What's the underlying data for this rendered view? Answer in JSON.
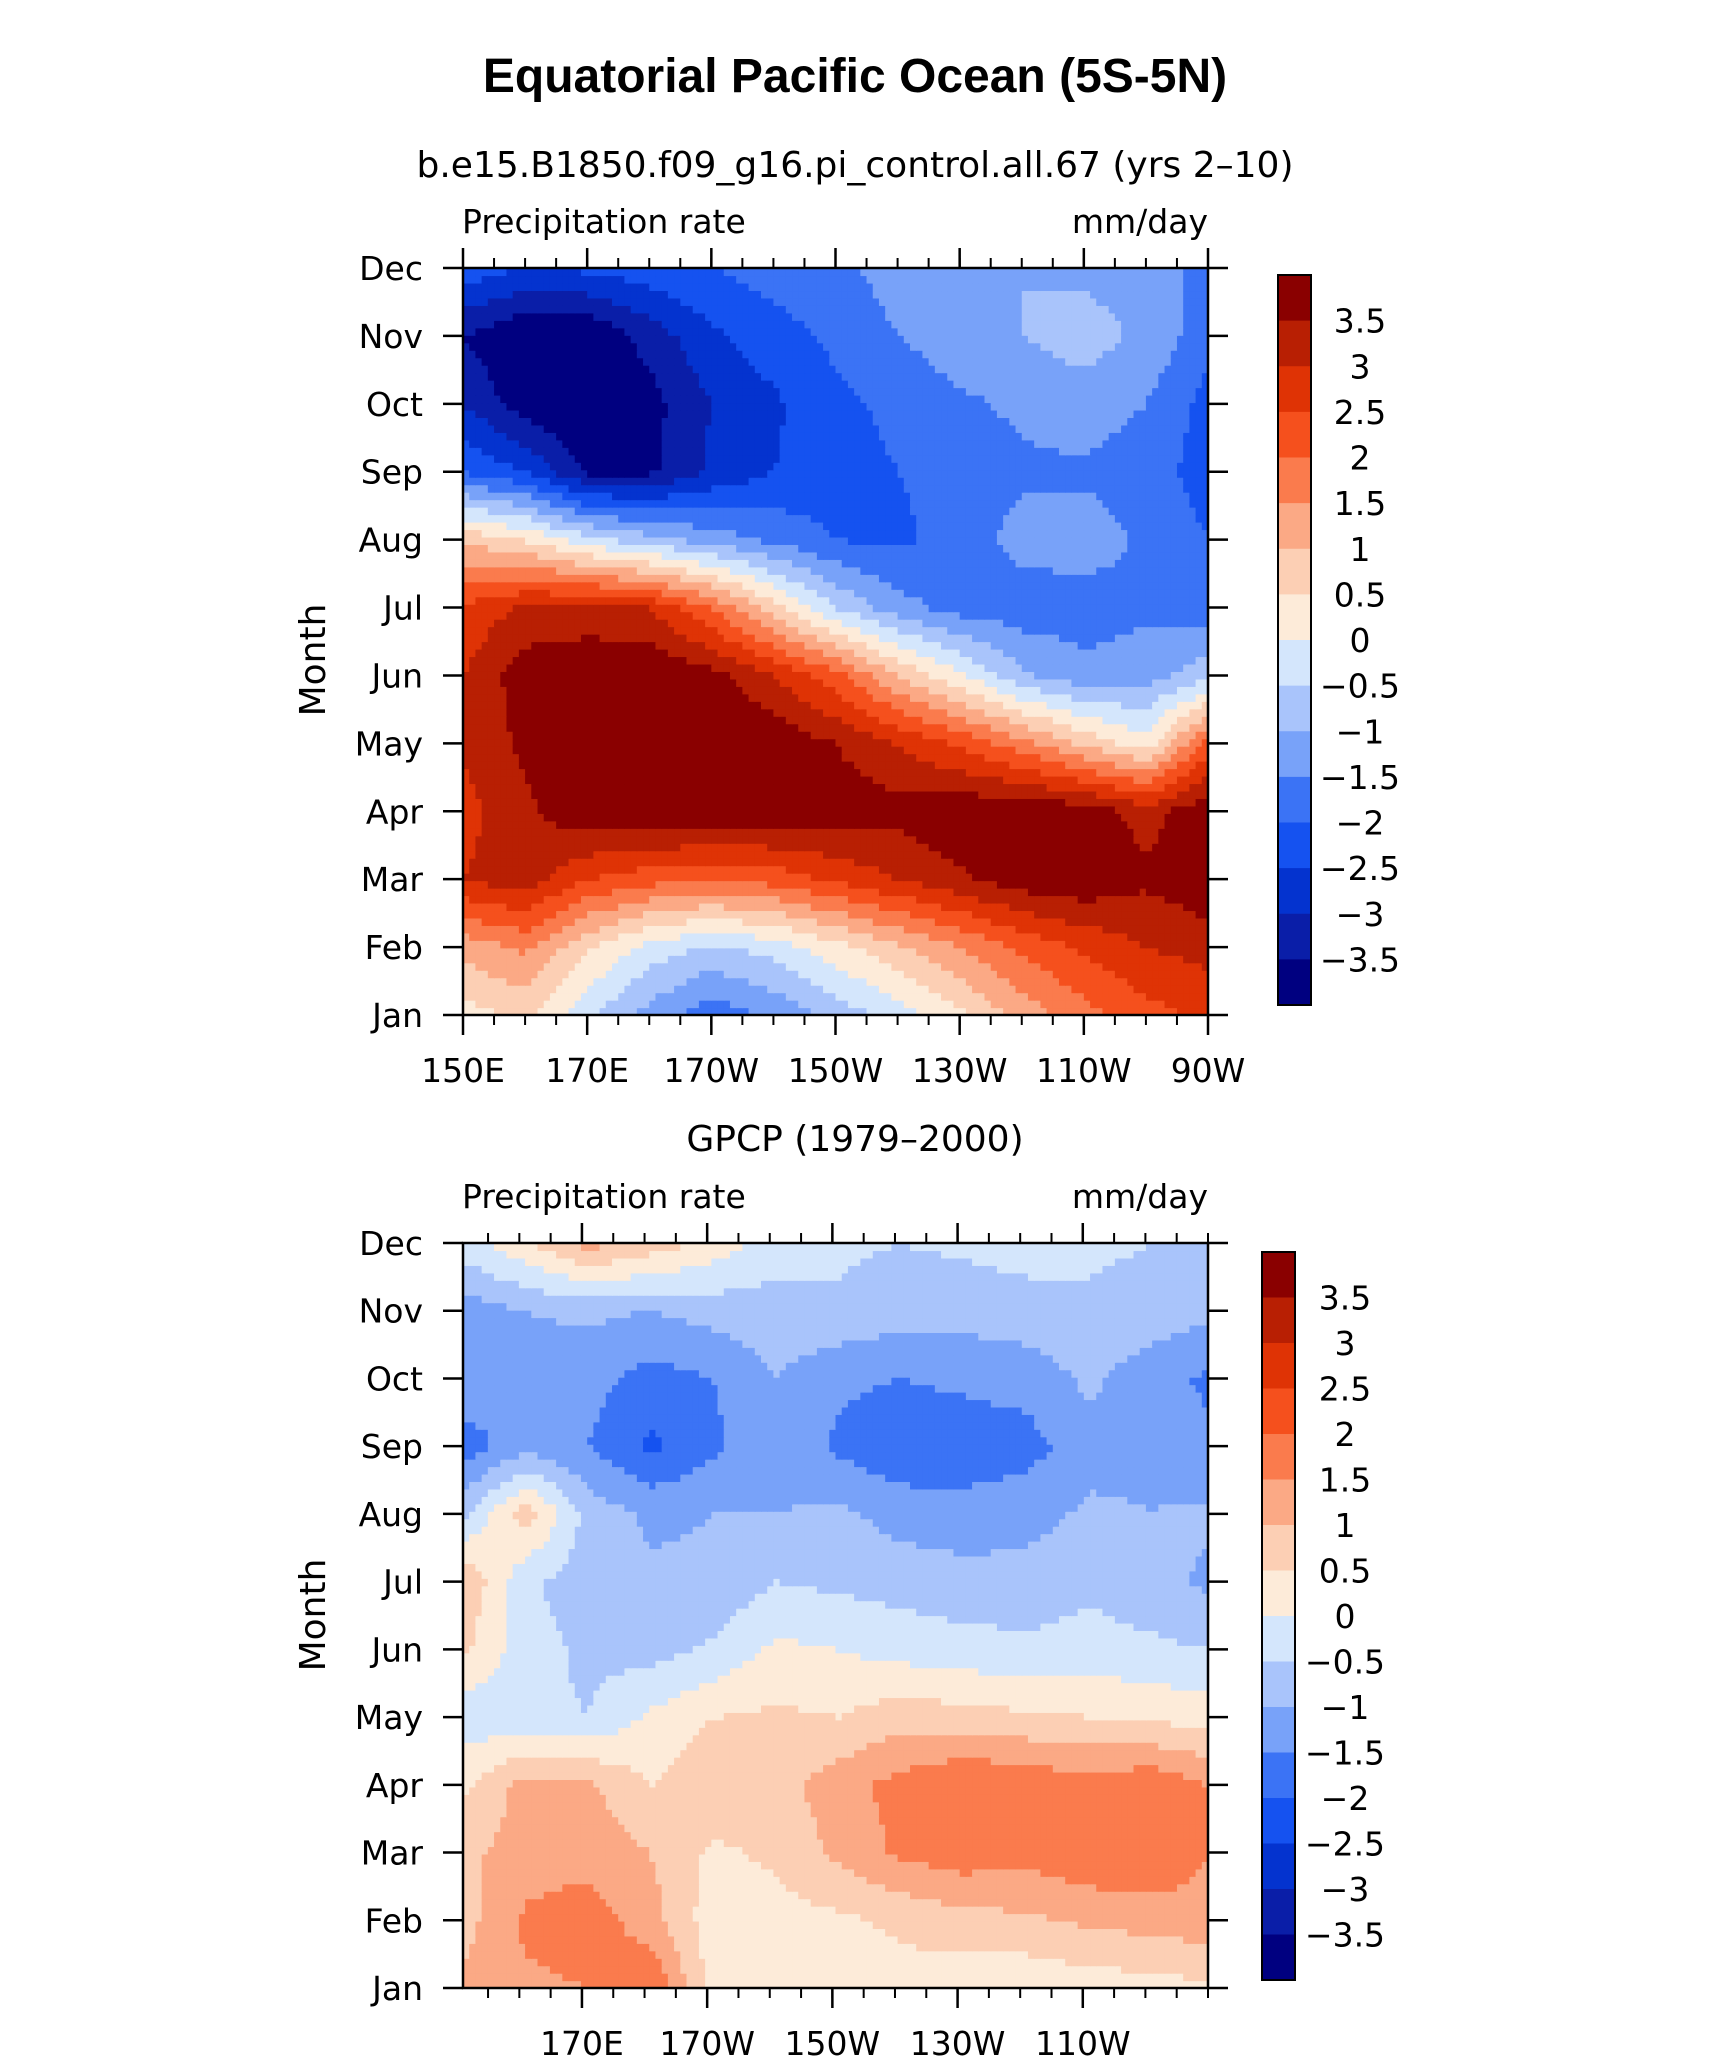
{
  "figure": {
    "title": "Equatorial Pacific Ocean (5S-5N)"
  },
  "colors": {
    "levels": [
      -4,
      -3.5,
      -3,
      -2.5,
      -2,
      -1.5,
      -1,
      -0.5,
      0,
      0.5,
      1,
      1.5,
      2,
      2.5,
      3,
      3.5,
      4
    ],
    "fills": [
      "#000080",
      "#0a1ea8",
      "#0433cf",
      "#1552f0",
      "#3b73f5",
      "#78a2f9",
      "#a9c4fb",
      "#d4e6fc",
      "#fdebd9",
      "#fccfb4",
      "#fba985",
      "#fa7b4d",
      "#f5501d",
      "#df3305",
      "#b81f03",
      "#8a0000"
    ]
  },
  "chart_data": [
    {
      "type": "heatmap",
      "title": "b.e15.B1850.f09_g16.pi_control.all.67 (yrs 2–10)",
      "left_label": "Precipitation rate",
      "right_label": "mm/day",
      "ylabel": "Month",
      "x_tick_labels": [
        "150E",
        "170E",
        "170W",
        "150W",
        "130W",
        "110W",
        "90W"
      ],
      "y_tick_labels": [
        "Jan",
        "Feb",
        "Mar",
        "Apr",
        "May",
        "Jun",
        "Jul",
        "Aug",
        "Sep",
        "Oct",
        "Nov",
        "Dec"
      ],
      "colorbar_labels": [
        "3.5",
        "3",
        "2.5",
        "2",
        "1.5",
        "1",
        "0.5",
        "0",
        "−0.5",
        "−1",
        "−1.5",
        "−2",
        "−2.5",
        "−3",
        "−3.5"
      ],
      "xlim": [
        150,
        270
      ],
      "ylim": [
        1,
        12
      ],
      "x": [
        150,
        160,
        170,
        180,
        190,
        200,
        210,
        220,
        230,
        240,
        250,
        260,
        270
      ],
      "y": [
        1,
        2,
        3,
        4,
        5,
        6,
        7,
        8,
        9,
        10,
        11,
        12
      ],
      "z": [
        [
          0.3,
          0.6,
          -0.4,
          -1.2,
          -1.8,
          -1.4,
          -0.8,
          -0.3,
          0.4,
          1.2,
          1.8,
          2.3,
          2.6
        ],
        [
          1.2,
          1.6,
          0.6,
          -0.2,
          -0.6,
          -0.3,
          0.3,
          0.9,
          1.5,
          2.1,
          2.6,
          3.0,
          3.2
        ],
        [
          3.0,
          3.3,
          2.5,
          2.2,
          2.0,
          2.2,
          2.6,
          3.0,
          3.4,
          3.8,
          3.9,
          3.6,
          3.9
        ],
        [
          2.8,
          3.4,
          3.9,
          4.0,
          4.0,
          3.9,
          3.8,
          3.7,
          3.9,
          4.0,
          3.8,
          3.3,
          3.9
        ],
        [
          3.1,
          3.6,
          3.9,
          4.0,
          4.0,
          3.9,
          3.5,
          3.0,
          2.4,
          1.7,
          0.9,
          0.2,
          2.2
        ],
        [
          3.0,
          3.8,
          3.9,
          4.0,
          3.7,
          3.0,
          2.2,
          1.0,
          0.1,
          -0.9,
          -1.3,
          -1.2,
          -0.7
        ],
        [
          2.6,
          3.1,
          3.2,
          3.0,
          2.0,
          0.7,
          -0.5,
          -1.3,
          -1.7,
          -1.8,
          -1.8,
          -1.6,
          -1.8
        ],
        [
          0.9,
          0.5,
          -0.3,
          -0.8,
          -1.2,
          -1.6,
          -2.0,
          -2.1,
          -1.8,
          -1.3,
          -1.2,
          -1.6,
          -2.0
        ],
        [
          -2.0,
          -2.5,
          -3.6,
          -3.6,
          -2.9,
          -2.5,
          -2.2,
          -2.0,
          -1.8,
          -1.6,
          -1.6,
          -1.8,
          -2.2
        ],
        [
          -3.0,
          -3.8,
          -4.0,
          -3.7,
          -3.0,
          -2.6,
          -2.1,
          -1.9,
          -1.6,
          -1.4,
          -1.2,
          -1.5,
          -2.2
        ],
        [
          -3.5,
          -4.0,
          -4.0,
          -3.3,
          -2.6,
          -2.2,
          -1.9,
          -1.5,
          -1.2,
          -1.0,
          -0.8,
          -1.1,
          -1.8
        ],
        [
          -2.2,
          -2.5,
          -2.4,
          -2.2,
          -2.0,
          -1.8,
          -1.6,
          -1.3,
          -1.1,
          -1.0,
          -1.1,
          -1.2,
          -1.7
        ]
      ]
    },
    {
      "type": "heatmap",
      "title": "GPCP (1979–2000)",
      "left_label": "Precipitation rate",
      "right_label": "mm/day",
      "ylabel": "Month",
      "x_tick_labels": [
        "170E",
        "170W",
        "150W",
        "130W",
        "110W"
      ],
      "y_tick_labels": [
        "Jan",
        "Feb",
        "Mar",
        "Apr",
        "May",
        "Jun",
        "Jul",
        "Aug",
        "Sep",
        "Oct",
        "Nov",
        "Dec"
      ],
      "colorbar_labels": [
        "3.5",
        "3",
        "2.5",
        "2",
        "1.5",
        "1",
        "0.5",
        "0",
        "−0.5",
        "−1",
        "−1.5",
        "−2",
        "−2.5",
        "−3",
        "−3.5"
      ],
      "xlim": [
        151,
        270
      ],
      "ylim": [
        1,
        12
      ],
      "x": [
        151,
        161,
        171,
        181,
        191,
        201,
        211,
        221,
        231,
        241,
        251,
        261,
        270
      ],
      "y": [
        1,
        2,
        3,
        4,
        5,
        6,
        7,
        8,
        9,
        10,
        11,
        12
      ],
      "z": [
        [
          1.1,
          1.4,
          1.5,
          2.0,
          0.3,
          0.2,
          0.2,
          0.3,
          0.2,
          0.1,
          0.2,
          0.3,
          0.4
        ],
        [
          0.8,
          1.6,
          1.8,
          1.2,
          0.2,
          0.3,
          0.4,
          0.6,
          0.8,
          0.9,
          1.1,
          1.2,
          1.3
        ],
        [
          0.9,
          1.2,
          1.3,
          1.0,
          0.4,
          0.6,
          1.1,
          1.6,
          1.8,
          1.7,
          1.9,
          2.0,
          1.5
        ],
        [
          0.4,
          1.2,
          1.1,
          0.5,
          0.9,
          0.8,
          1.3,
          1.7,
          2.0,
          1.9,
          1.7,
          1.9,
          1.5
        ],
        [
          -0.3,
          -0.4,
          -0.5,
          0.1,
          0.5,
          0.6,
          0.5,
          0.8,
          0.7,
          0.6,
          0.5,
          0.4,
          0.3
        ],
        [
          0.6,
          -0.3,
          -0.6,
          -0.7,
          -0.4,
          0.1,
          0.0,
          -0.2,
          -0.3,
          -0.4,
          -0.3,
          -0.4,
          -0.5
        ],
        [
          1.0,
          -0.4,
          -0.8,
          -0.9,
          -0.9,
          -0.5,
          -0.6,
          -0.7,
          -0.8,
          -0.8,
          -0.6,
          -0.8,
          -1.1
        ],
        [
          -0.6,
          0.8,
          -0.7,
          -1.1,
          -1.0,
          -1.0,
          -0.9,
          -1.2,
          -1.3,
          -1.2,
          -0.9,
          -1.0,
          -0.9
        ],
        [
          -1.8,
          -1.2,
          -1.5,
          -2.1,
          -1.6,
          -1.1,
          -1.6,
          -1.9,
          -1.8,
          -1.7,
          -1.2,
          -1.1,
          -1.4
        ],
        [
          -1.1,
          -1.2,
          -1.3,
          -1.7,
          -1.5,
          -1.0,
          -1.4,
          -1.5,
          -1.4,
          -1.3,
          -0.9,
          -1.3,
          -1.6
        ],
        [
          -1.3,
          -1.0,
          -0.9,
          -1.0,
          -0.8,
          -0.7,
          -0.6,
          -0.8,
          -0.8,
          -0.7,
          -0.6,
          -0.7,
          -0.9
        ],
        [
          -0.2,
          0.4,
          1.2,
          0.8,
          0.3,
          -0.3,
          -0.4,
          -0.5,
          -0.4,
          -0.3,
          -0.4,
          -0.5,
          -0.6
        ]
      ]
    }
  ]
}
